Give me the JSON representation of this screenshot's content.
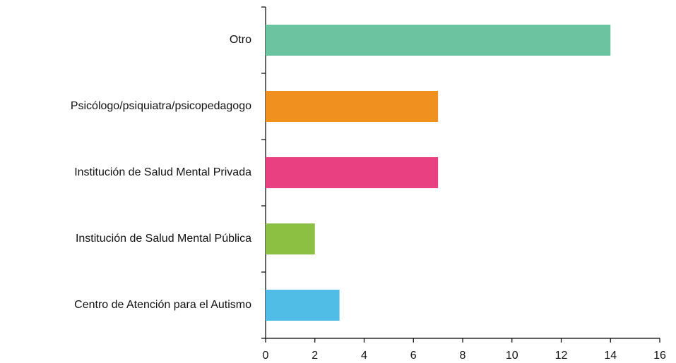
{
  "chart_data": {
    "type": "hbar",
    "categories": [
      "Otro",
      "Psicólogo/psiquiatra/psicopedagogo",
      "Institución de Salud Mental Privada",
      "Institución de Salud Mental Pública",
      "Centro de Atención para el Autismo"
    ],
    "values": [
      14,
      7,
      7,
      2,
      3
    ],
    "colors": [
      "#6cc3a0",
      "#f0901e",
      "#e84080",
      "#8cc043",
      "#4fbde6"
    ],
    "xlim": [
      0,
      16
    ],
    "xticks": [
      0,
      2,
      4,
      6,
      8,
      10,
      12,
      14,
      16
    ],
    "grid": false
  }
}
